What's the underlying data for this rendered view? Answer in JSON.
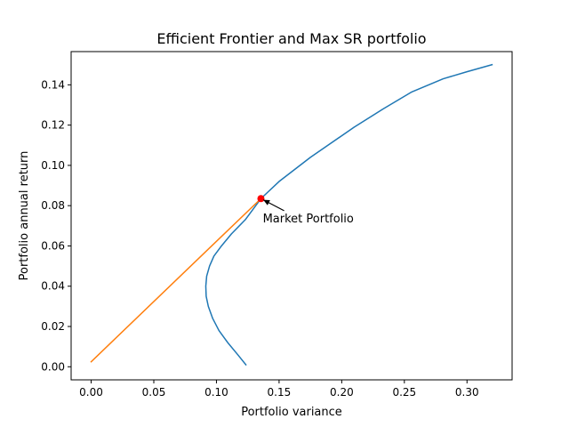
{
  "chart_data": {
    "type": "line",
    "title": "Efficient Frontier and Max SR portfolio",
    "xlabel": "Portfolio variance",
    "ylabel": "Portfolio annual return",
    "xlim": [
      -0.016,
      0.336
    ],
    "ylim": [
      -0.0065,
      0.1565
    ],
    "xticks": [
      "0.00",
      "0.05",
      "0.10",
      "0.15",
      "0.20",
      "0.25",
      "0.30"
    ],
    "xtick_values": [
      0.0,
      0.05,
      0.1,
      0.15,
      0.2,
      0.25,
      0.3
    ],
    "yticks": [
      "0.00",
      "0.02",
      "0.04",
      "0.06",
      "0.08",
      "0.10",
      "0.12",
      "0.14"
    ],
    "ytick_values": [
      0.0,
      0.02,
      0.04,
      0.06,
      0.08,
      0.1,
      0.12,
      0.14
    ],
    "grid": false,
    "series": [
      {
        "color": "#1f77b4",
        "x": [
          0.1235,
          0.117,
          0.109,
          0.102,
          0.097,
          0.0935,
          0.0918,
          0.0915,
          0.0922,
          0.0945,
          0.098,
          0.104,
          0.112,
          0.123,
          0.1355,
          0.15,
          0.175,
          0.21,
          0.233,
          0.256,
          0.281,
          0.3,
          0.32
        ],
        "y": [
          0.001,
          0.006,
          0.012,
          0.018,
          0.024,
          0.03,
          0.035,
          0.04,
          0.045,
          0.05,
          0.055,
          0.06,
          0.066,
          0.073,
          0.0835,
          0.092,
          0.104,
          0.119,
          0.128,
          0.1365,
          0.143,
          0.1465,
          0.15
        ]
      },
      {
        "color": "#ff7f0e",
        "x": [
          0.0,
          0.1355
        ],
        "y": [
          0.0025,
          0.0835
        ]
      }
    ],
    "markers": [
      {
        "x": 0.1355,
        "y": 0.0835,
        "color": "#ff0000"
      }
    ],
    "annotations": [
      {
        "text": "Market Portfolio",
        "x": 0.1355,
        "y": 0.0835,
        "text_x": 0.137,
        "text_y": 0.0735
      }
    ]
  }
}
